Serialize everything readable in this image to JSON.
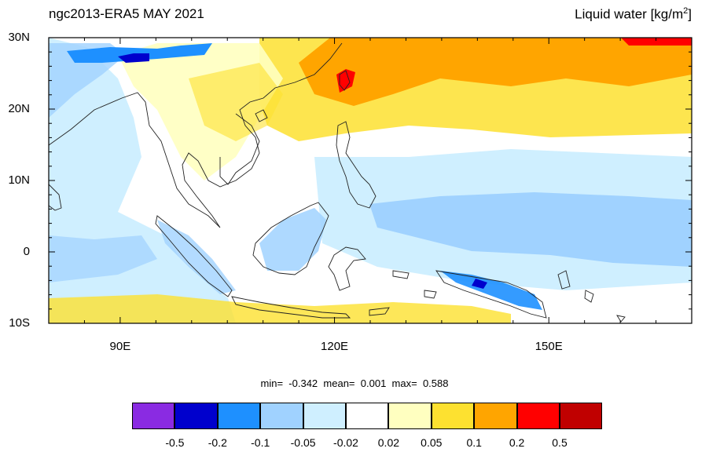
{
  "title_left": "ngc2013-ERA5 MAY 2021",
  "title_right": "Liquid water",
  "title_units": "[kg/m",
  "title_units_sup": "2",
  "title_units_end": "]",
  "map": {
    "lon_range": [
      80,
      170
    ],
    "lat_range": [
      -10,
      30
    ],
    "background_color": "#ffffff",
    "ocean_anomaly_regions": [
      {
        "name": "bay-of-bengal-negative",
        "color": "#cfefff"
      },
      {
        "name": "equatorial-pacific-negative",
        "color": "#a0d2ff"
      },
      {
        "name": "subtropical-pacific-positive",
        "color": "#ffa500"
      },
      {
        "name": "south-china-sea-positive",
        "color": "#fde130"
      },
      {
        "name": "taiwan-positive",
        "color": "#ff0000"
      }
    ],
    "lat_ticks": [
      {
        "value": 30,
        "label": "30N"
      },
      {
        "value": 20,
        "label": "20N"
      },
      {
        "value": 10,
        "label": "10N"
      },
      {
        "value": 0,
        "label": "0"
      },
      {
        "value": -10,
        "label": "10S"
      }
    ],
    "lon_ticks": [
      {
        "value": 90,
        "label": "90E"
      },
      {
        "value": 120,
        "label": "120E"
      },
      {
        "value": 150,
        "label": "150E"
      }
    ]
  },
  "stats": {
    "min_label": "min=",
    "min_value": "-0.342",
    "mean_label": "mean=",
    "mean_value": "0.001",
    "max_label": "max=",
    "max_value": "0.588"
  },
  "colorbar": {
    "colors": [
      "#8a2be2",
      "#0000cd",
      "#1e90ff",
      "#a0d2ff",
      "#cfefff",
      "#ffffff",
      "#ffffc0",
      "#fde130",
      "#ffa500",
      "#ff0000",
      "#c00000"
    ],
    "labels": [
      "-0.5",
      "-0.2",
      "-0.1",
      "-0.05",
      "-0.02",
      "0.02",
      "0.05",
      "0.1",
      "0.2",
      "0.5"
    ]
  }
}
